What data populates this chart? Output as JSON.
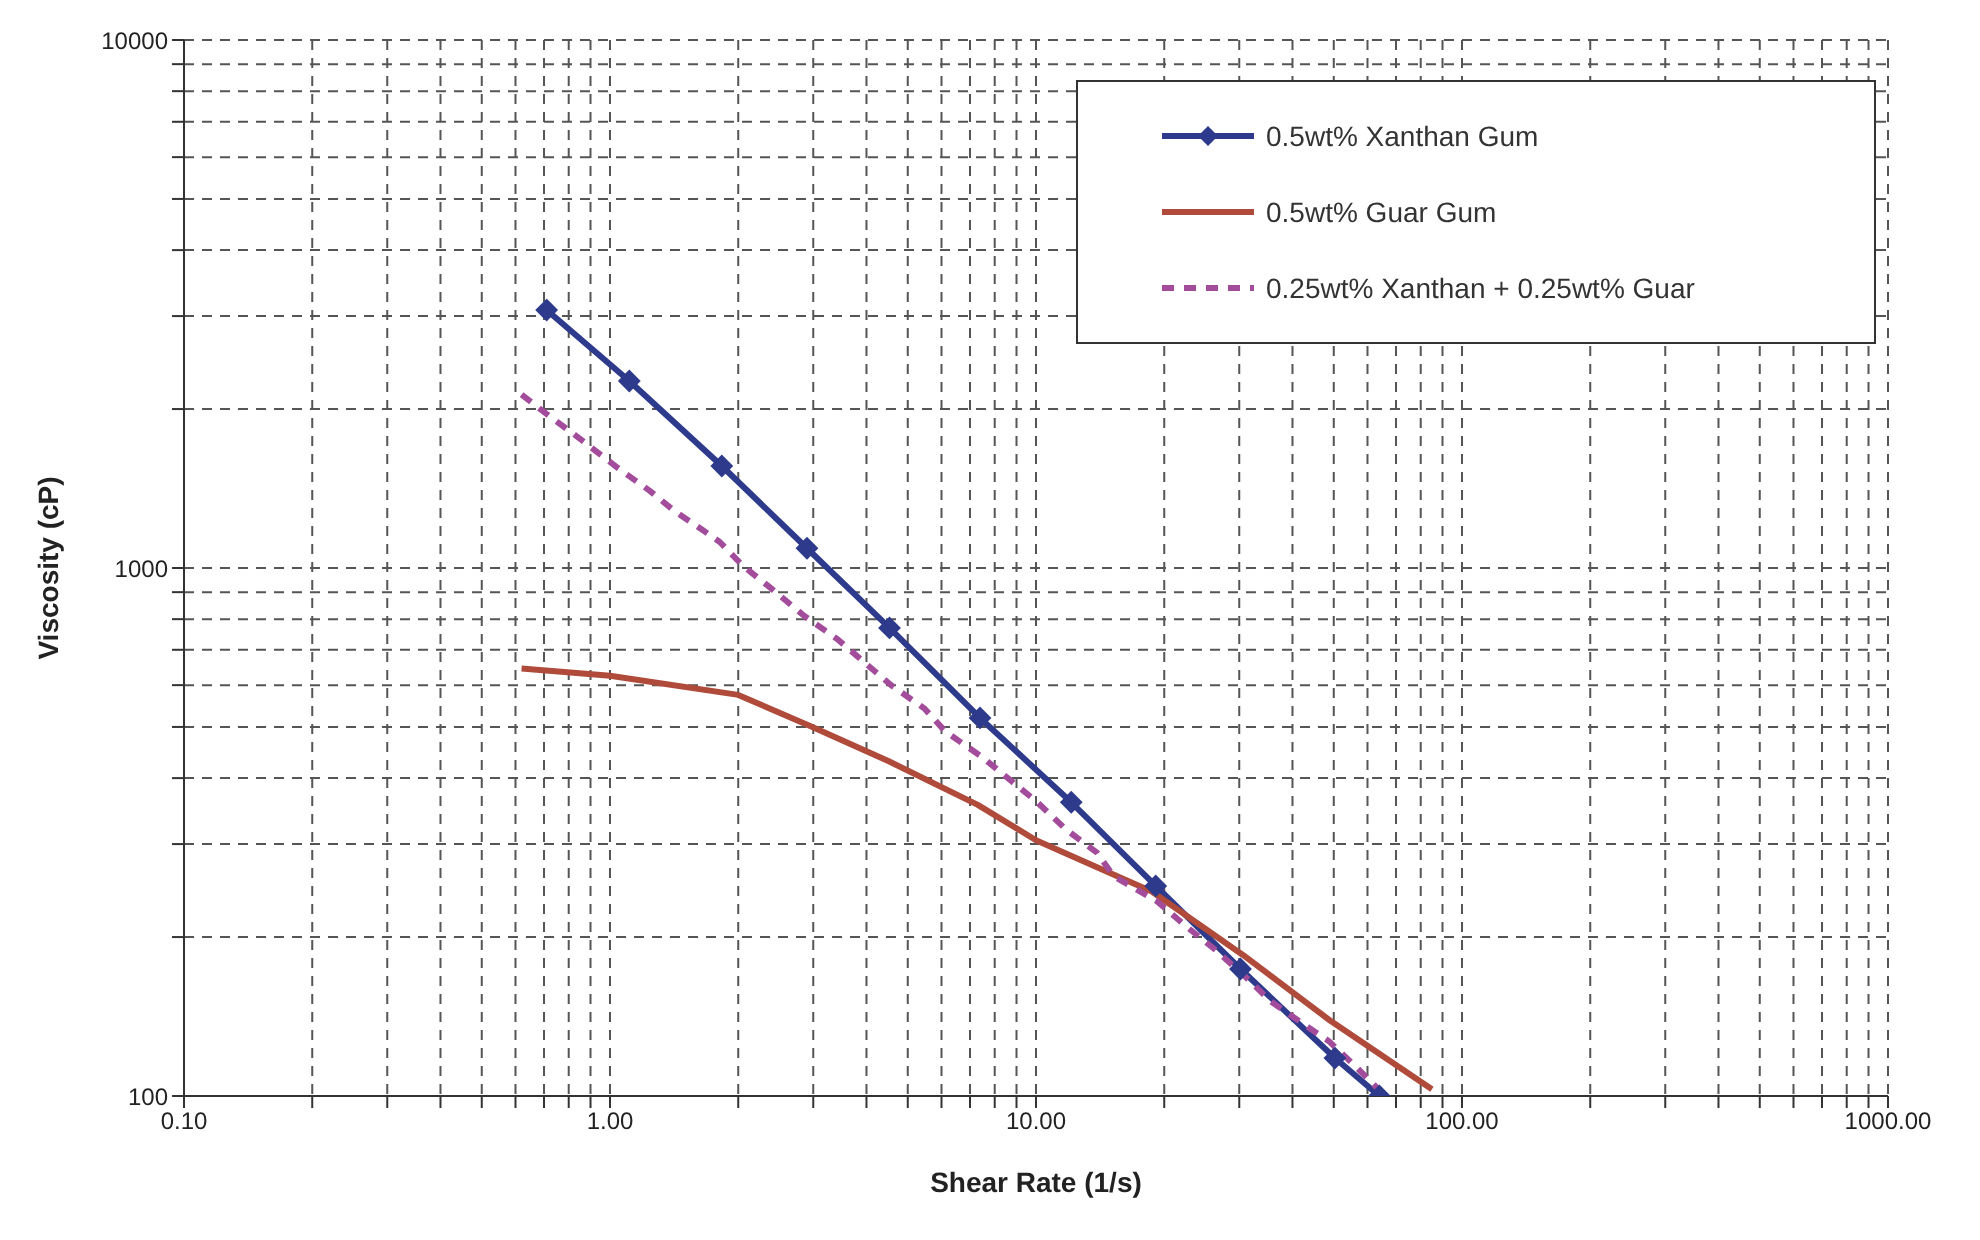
{
  "chart_data": {
    "type": "line",
    "xlabel": "Shear Rate (1/s)",
    "ylabel": "Viscosity (cP)",
    "log": "xy",
    "grid": true,
    "legend": "top right",
    "xlim": [
      0.1,
      1000
    ],
    "ylim": [
      100,
      10000
    ],
    "xticks": [
      {
        "value": 0.1,
        "label": "0.10"
      },
      {
        "value": 0.2,
        "label": null
      },
      {
        "value": 0.3,
        "label": null
      },
      {
        "value": 0.4,
        "label": null
      },
      {
        "value": 0.5,
        "label": null
      },
      {
        "value": 0.6,
        "label": null
      },
      {
        "value": 0.7,
        "label": null
      },
      {
        "value": 0.8,
        "label": null
      },
      {
        "value": 0.9,
        "label": null
      },
      {
        "value": 1,
        "label": "1.00"
      },
      {
        "value": 2,
        "label": null
      },
      {
        "value": 3,
        "label": null
      },
      {
        "value": 4,
        "label": null
      },
      {
        "value": 5,
        "label": null
      },
      {
        "value": 6,
        "label": null
      },
      {
        "value": 7,
        "label": null
      },
      {
        "value": 8,
        "label": null
      },
      {
        "value": 9,
        "label": null
      },
      {
        "value": 10,
        "label": "10.00"
      },
      {
        "value": 20,
        "label": null
      },
      {
        "value": 30,
        "label": null
      },
      {
        "value": 40,
        "label": null
      },
      {
        "value": 50,
        "label": null
      },
      {
        "value": 60,
        "label": null
      },
      {
        "value": 70,
        "label": null
      },
      {
        "value": 80,
        "label": null
      },
      {
        "value": 90,
        "label": null
      },
      {
        "value": 100,
        "label": "100.00"
      },
      {
        "value": 200,
        "label": null
      },
      {
        "value": 300,
        "label": null
      },
      {
        "value": 400,
        "label": null
      },
      {
        "value": 500,
        "label": null
      },
      {
        "value": 600,
        "label": null
      },
      {
        "value": 700,
        "label": null
      },
      {
        "value": 800,
        "label": null
      },
      {
        "value": 900,
        "label": null
      },
      {
        "value": 1000,
        "label": "1000.00"
      }
    ],
    "yticks": [
      100,
      {
        "value": 200,
        "label": null
      },
      {
        "value": 300,
        "label": null
      },
      {
        "value": 400,
        "label": null
      },
      {
        "value": 500,
        "label": null
      },
      {
        "value": 600,
        "label": null
      },
      {
        "value": 700,
        "label": null
      },
      {
        "value": 800,
        "label": null
      },
      {
        "value": 900,
        "label": null
      },
      1000,
      {
        "value": 2000,
        "label": null
      },
      {
        "value": 3000,
        "label": null
      },
      {
        "value": 4000,
        "label": null
      },
      {
        "value": 5000,
        "label": null
      },
      {
        "value": 6000,
        "label": null
      },
      {
        "value": 7000,
        "label": null
      },
      {
        "value": 8000,
        "label": null
      },
      {
        "value": 9000,
        "label": null
      },
      10000
    ],
    "series": [
      {
        "name": "0.5wt% Xanthan Gum",
        "color": "#2e3b8c",
        "marker": "diamond",
        "line_style": "solid",
        "x": [
          0.71,
          1.11,
          1.83,
          2.9,
          4.53,
          7.39,
          12.1,
          19.1,
          30.2,
          50.3,
          64
        ],
        "values": [
          3080,
          2260,
          1560,
          1090,
          770,
          520,
          360,
          250,
          174,
          118,
          100
        ]
      },
      {
        "name": "0.5wt% Guar Gum",
        "color": "#b04a3a",
        "marker": "none",
        "line_style": "solid",
        "x": [
          0.62,
          1.0,
          2.0,
          2.95,
          4.5,
          7.3,
          10,
          18.7,
          30.6,
          49,
          85
        ],
        "values": [
          645,
          625,
          575,
          502,
          431,
          356,
          305,
          244,
          185,
          139,
          103
        ]
      },
      {
        "name": "0.25wt% Xanthan + 0.25wt% Guar",
        "color": "#a44c9c",
        "marker": "none",
        "line_style": "dashed",
        "x": [
          0.62,
          0.72,
          0.84,
          1.04,
          1.24,
          1.42,
          1.65,
          1.81,
          2.05,
          2.37,
          2.86,
          3.42,
          3.91,
          4.58,
          5.47,
          6.13,
          7.46,
          8.82,
          10,
          11.8,
          13.9,
          15.2,
          19.2,
          22.6,
          26.4,
          30.6,
          35.6,
          41.8,
          48.7,
          57.4,
          66
        ],
        "values": [
          2130,
          1940,
          1770,
          1550,
          1400,
          1280,
          1180,
          1120,
          1010,
          920,
          811,
          733,
          668,
          599,
          542,
          490,
          439,
          393,
          362,
          319,
          289,
          261,
          234,
          209,
          189,
          170,
          151,
          138,
          127,
          112,
          100
        ]
      }
    ]
  }
}
